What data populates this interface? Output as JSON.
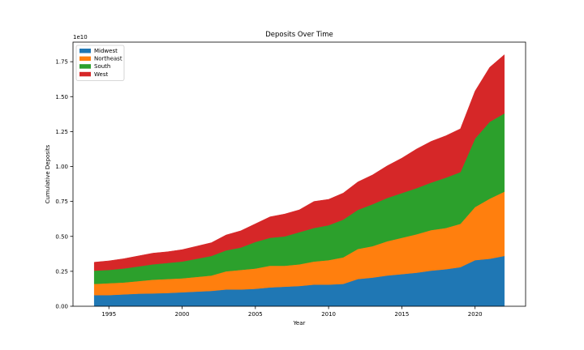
{
  "chart_data": {
    "type": "area",
    "stacked": true,
    "title": "Deposits Over Time",
    "xlabel": "Year",
    "ylabel": "Cumulative Deposits",
    "y_offset_label": "1e10",
    "xlim": [
      1992.55,
      2023.45
    ],
    "ylim": [
      0,
      18900000000.0
    ],
    "x_ticks": [
      1995,
      2000,
      2005,
      2010,
      2015,
      2020
    ],
    "y_ticks": [
      0,
      2500000000.0,
      5000000000.0,
      7500000000.0,
      10000000000.0,
      12500000000.0,
      15000000000.0,
      17500000000.0
    ],
    "y_tick_labels": [
      "0.00",
      "0.25",
      "0.50",
      "0.75",
      "1.00",
      "1.25",
      "1.50",
      "1.75"
    ],
    "legend_position": "top-left",
    "grid": false,
    "x": [
      1994,
      1995,
      1996,
      1997,
      1998,
      1999,
      2000,
      2001,
      2002,
      2003,
      2004,
      2005,
      2006,
      2007,
      2008,
      2009,
      2010,
      2011,
      2012,
      2013,
      2014,
      2015,
      2016,
      2017,
      2018,
      2019,
      2020,
      2021,
      2022
    ],
    "series": [
      {
        "name": "Midwest",
        "color": "#1f77b4",
        "values": [
          800000000.0,
          800000000.0,
          850000000.0,
          900000000.0,
          920000000.0,
          950000000.0,
          1000000000.0,
          1050000000.0,
          1100000000.0,
          1200000000.0,
          1200000000.0,
          1250000000.0,
          1350000000.0,
          1400000000.0,
          1450000000.0,
          1550000000.0,
          1550000000.0,
          1600000000.0,
          1950000000.0,
          2050000000.0,
          2200000000.0,
          2300000000.0,
          2400000000.0,
          2550000000.0,
          2650000000.0,
          2800000000.0,
          3300000000.0,
          3400000000.0,
          3600000000.0
        ]
      },
      {
        "name": "Northeast",
        "color": "#ff7f0e",
        "values": [
          800000000.0,
          850000000.0,
          850000000.0,
          900000000.0,
          980000000.0,
          1000000000.0,
          1000000000.0,
          1050000000.0,
          1100000000.0,
          1300000000.0,
          1400000000.0,
          1450000000.0,
          1550000000.0,
          1500000000.0,
          1550000000.0,
          1650000000.0,
          1750000000.0,
          1900000000.0,
          2150000000.0,
          2250000000.0,
          2450000000.0,
          2600000000.0,
          2750000000.0,
          2900000000.0,
          2950000000.0,
          3100000000.0,
          3800000000.0,
          4300000000.0,
          4600000000.0
        ]
      },
      {
        "name": "South",
        "color": "#2ca02c",
        "values": [
          950000000.0,
          950000000.0,
          1000000000.0,
          1050000000.0,
          1100000000.0,
          1150000000.0,
          1200000000.0,
          1300000000.0,
          1400000000.0,
          1500000000.0,
          1600000000.0,
          1900000000.0,
          2000000000.0,
          2100000000.0,
          2300000000.0,
          2400000000.0,
          2500000000.0,
          2700000000.0,
          2800000000.0,
          3000000000.0,
          3100000000.0,
          3200000000.0,
          3300000000.0,
          3400000000.0,
          3600000000.0,
          3700000000.0,
          4900000000.0,
          5500000000.0,
          5600000000.0
        ]
      },
      {
        "name": "West",
        "color": "#d62728",
        "values": [
          600000000.0,
          650000000.0,
          700000000.0,
          750000000.0,
          800000000.0,
          800000000.0,
          850000000.0,
          900000000.0,
          950000000.0,
          1100000000.0,
          1200000000.0,
          1300000000.0,
          1500000000.0,
          1600000000.0,
          1600000000.0,
          1900000000.0,
          1850000000.0,
          1900000000.0,
          2000000000.0,
          2100000000.0,
          2300000000.0,
          2500000000.0,
          2800000000.0,
          2950000000.0,
          3000000000.0,
          3100000000.0,
          3400000000.0,
          3900000000.0,
          4200000000.0
        ]
      }
    ]
  }
}
